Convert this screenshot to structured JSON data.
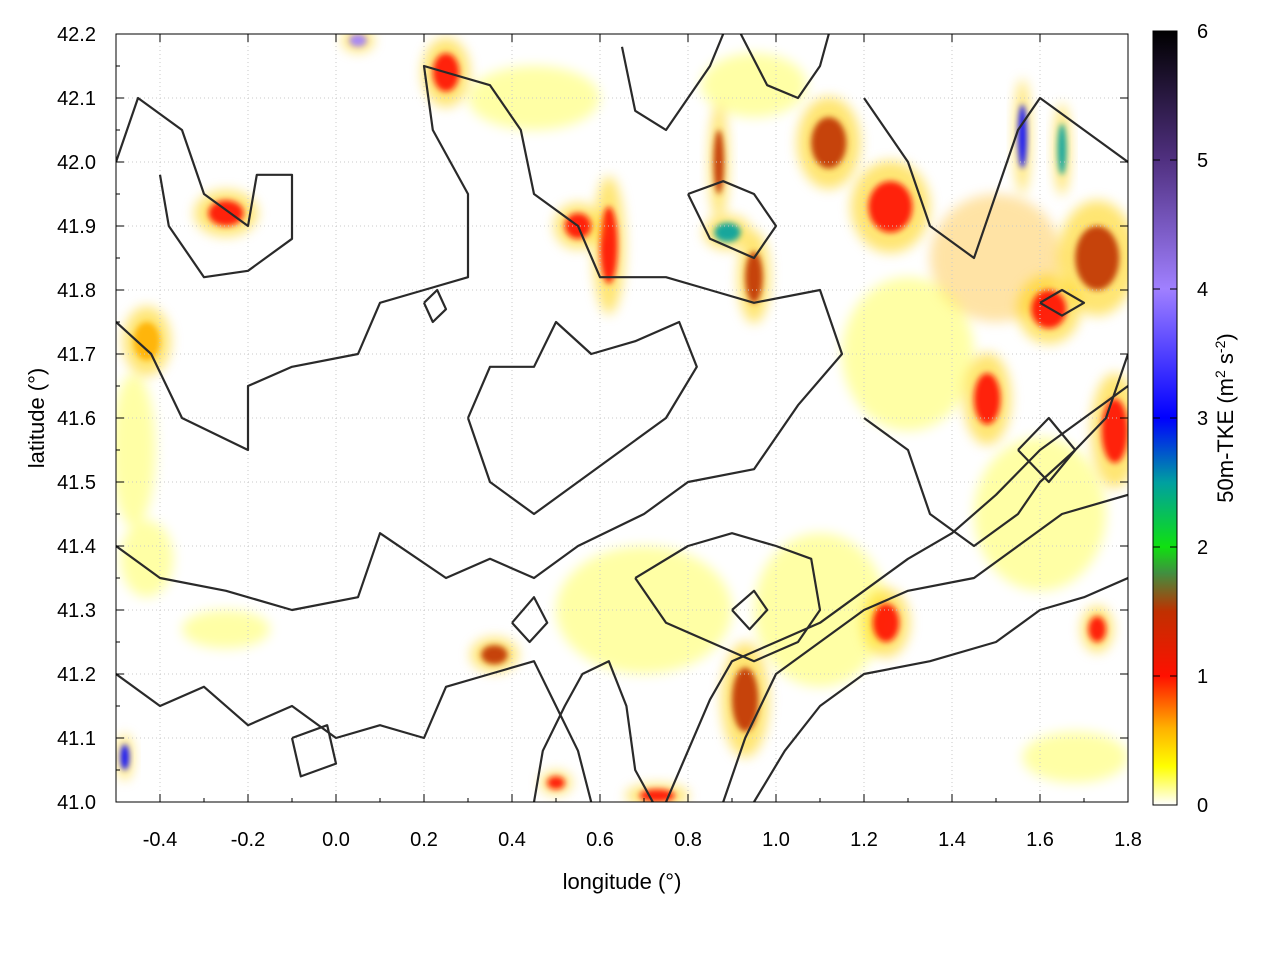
{
  "chart_data": {
    "type": "heatmap",
    "title": "",
    "xlabel": "longitude (°)",
    "ylabel": "latitude (°)",
    "xlim": [
      -0.5,
      1.8
    ],
    "ylim": [
      41.0,
      42.2
    ],
    "x_ticks": [
      -0.4,
      -0.2,
      0.0,
      0.2,
      0.4,
      0.6,
      0.8,
      1.0,
      1.2,
      1.4,
      1.6,
      1.8
    ],
    "x_tick_labels": [
      "-0.4",
      "-0.2",
      "0.0",
      "0.2",
      "0.4",
      "0.6",
      "0.8",
      "1.0",
      "1.2",
      "1.4",
      "1.6",
      "1.8"
    ],
    "y_ticks": [
      41.0,
      41.1,
      41.2,
      41.3,
      41.4,
      41.5,
      41.6,
      41.7,
      41.8,
      41.9,
      42.0,
      42.1,
      42.2
    ],
    "y_tick_labels": [
      "41.0",
      "41.1",
      "41.2",
      "41.3",
      "41.4",
      "41.5",
      "41.6",
      "41.7",
      "41.8",
      "41.9",
      "42.0",
      "42.1",
      "42.2"
    ],
    "grid": true,
    "colorbar": {
      "label_main": "50m-TKE (m",
      "label_sup1": "2",
      "label_mid": " s",
      "label_sup2": "-2",
      "label_end": ")",
      "range": [
        0,
        6
      ],
      "ticks": [
        0,
        1,
        2,
        3,
        4,
        5,
        6
      ],
      "tick_labels": [
        "0",
        "1",
        "2",
        "3",
        "4",
        "5",
        "6"
      ],
      "palette": [
        {
          "value": 0.0,
          "color": "#ffffff"
        },
        {
          "value": 0.3,
          "color": "#ffff00"
        },
        {
          "value": 0.6,
          "color": "#ffb000"
        },
        {
          "value": 1.0,
          "color": "#ff1000"
        },
        {
          "value": 1.5,
          "color": "#c03000"
        },
        {
          "value": 1.8,
          "color": "#409040"
        },
        {
          "value": 2.0,
          "color": "#10e010"
        },
        {
          "value": 2.5,
          "color": "#00a0a0"
        },
        {
          "value": 3.0,
          "color": "#0000ff"
        },
        {
          "value": 4.0,
          "color": "#a080ff"
        },
        {
          "value": 5.0,
          "color": "#503080"
        },
        {
          "value": 6.0,
          "color": "#000000"
        }
      ]
    },
    "hotspots": [
      {
        "lon": 0.36,
        "lat": 41.23,
        "value": 1.3,
        "rx": 0.03,
        "ry": 0.015
      },
      {
        "lon": 0.93,
        "lat": 41.16,
        "value": 1.1,
        "rx": 0.03,
        "ry": 0.05
      },
      {
        "lon": 0.87,
        "lat": 42.0,
        "value": 1.4,
        "rx": 0.012,
        "ry": 0.05
      },
      {
        "lon": 0.89,
        "lat": 41.89,
        "value": 2.3,
        "rx": 0.03,
        "ry": 0.015
      },
      {
        "lon": 0.95,
        "lat": 41.82,
        "value": 1.1,
        "rx": 0.02,
        "ry": 0.04
      },
      {
        "lon": 1.12,
        "lat": 42.03,
        "value": 1.1,
        "rx": 0.04,
        "ry": 0.04
      },
      {
        "lon": 1.56,
        "lat": 42.04,
        "value": 2.7,
        "rx": 0.01,
        "ry": 0.05
      },
      {
        "lon": 1.65,
        "lat": 42.02,
        "value": 2.5,
        "rx": 0.01,
        "ry": 0.04
      },
      {
        "lon": 1.73,
        "lat": 41.85,
        "value": 1.2,
        "rx": 0.05,
        "ry": 0.05
      },
      {
        "lon": 1.62,
        "lat": 41.77,
        "value": 1.0,
        "rx": 0.04,
        "ry": 0.03
      },
      {
        "lon": 1.48,
        "lat": 41.63,
        "value": 1.0,
        "rx": 0.03,
        "ry": 0.04
      },
      {
        "lon": 0.62,
        "lat": 41.87,
        "value": 1.0,
        "rx": 0.02,
        "ry": 0.06
      },
      {
        "lon": 0.25,
        "lat": 42.14,
        "value": 0.9,
        "rx": 0.03,
        "ry": 0.03
      },
      {
        "lon": 1.26,
        "lat": 41.93,
        "value": 0.9,
        "rx": 0.05,
        "ry": 0.04
      },
      {
        "lon": 0.55,
        "lat": 41.9,
        "value": 0.8,
        "rx": 0.03,
        "ry": 0.02
      },
      {
        "lon": -0.25,
        "lat": 41.92,
        "value": 0.7,
        "rx": 0.04,
        "ry": 0.02
      },
      {
        "lon": 0.05,
        "lat": 42.19,
        "value": 3.2,
        "rx": 0.02,
        "ry": 0.01
      },
      {
        "lon": -0.48,
        "lat": 41.07,
        "value": 3.0,
        "rx": 0.01,
        "ry": 0.02
      },
      {
        "lon": 1.77,
        "lat": 41.58,
        "value": 1.0,
        "rx": 0.03,
        "ry": 0.05
      },
      {
        "lon": 0.73,
        "lat": 41.01,
        "value": 1.0,
        "rx": 0.04,
        "ry": 0.01
      },
      {
        "lon": 0.5,
        "lat": 41.03,
        "value": 0.9,
        "rx": 0.02,
        "ry": 0.01
      },
      {
        "lon": 1.25,
        "lat": 41.28,
        "value": 0.9,
        "rx": 0.03,
        "ry": 0.03
      },
      {
        "lon": 1.73,
        "lat": 41.27,
        "value": 0.9,
        "rx": 0.02,
        "ry": 0.02
      },
      {
        "lon": -0.43,
        "lat": 41.72,
        "value": 0.6,
        "rx": 0.03,
        "ry": 0.03
      }
    ],
    "broad_zones": [
      {
        "lon": -0.46,
        "lat": 41.55,
        "value": 0.3,
        "rx": 0.05,
        "ry": 0.12
      },
      {
        "lon": -0.25,
        "lat": 41.27,
        "value": 0.3,
        "rx": 0.1,
        "ry": 0.03
      },
      {
        "lon": -0.43,
        "lat": 41.38,
        "value": 0.3,
        "rx": 0.06,
        "ry": 0.06
      },
      {
        "lon": 1.68,
        "lat": 41.07,
        "value": 0.3,
        "rx": 0.12,
        "ry": 0.04
      },
      {
        "lon": 1.5,
        "lat": 41.85,
        "value": 0.35,
        "rx": 0.15,
        "ry": 0.1
      },
      {
        "lon": 1.3,
        "lat": 41.7,
        "value": 0.3,
        "rx": 0.15,
        "ry": 0.12
      },
      {
        "lon": 1.6,
        "lat": 41.45,
        "value": 0.3,
        "rx": 0.15,
        "ry": 0.12
      },
      {
        "lon": 0.45,
        "lat": 42.1,
        "value": 0.3,
        "rx": 0.15,
        "ry": 0.05
      },
      {
        "lon": 0.95,
        "lat": 42.12,
        "value": 0.3,
        "rx": 0.12,
        "ry": 0.05
      },
      {
        "lon": 0.7,
        "lat": 41.3,
        "value": 0.25,
        "rx": 0.2,
        "ry": 0.1
      },
      {
        "lon": 1.1,
        "lat": 41.3,
        "value": 0.25,
        "rx": 0.15,
        "ry": 0.12
      }
    ],
    "contours": [
      [
        [
          -0.5,
          42.0
        ],
        [
          -0.45,
          42.1
        ],
        [
          -0.35,
          42.05
        ],
        [
          -0.3,
          41.95
        ],
        [
          -0.2,
          41.9
        ],
        [
          -0.18,
          41.98
        ],
        [
          -0.1,
          41.98
        ],
        [
          -0.1,
          41.88
        ],
        [
          -0.2,
          41.83
        ],
        [
          -0.3,
          41.82
        ],
        [
          -0.38,
          41.9
        ],
        [
          -0.4,
          41.98
        ]
      ],
      [
        [
          -0.5,
          41.75
        ],
        [
          -0.42,
          41.7
        ],
        [
          -0.35,
          41.6
        ],
        [
          -0.2,
          41.55
        ],
        [
          -0.2,
          41.65
        ],
        [
          -0.1,
          41.68
        ],
        [
          0.05,
          41.7
        ],
        [
          0.1,
          41.78
        ],
        [
          0.2,
          41.8
        ],
        [
          0.3,
          41.82
        ],
        [
          0.3,
          41.95
        ],
        [
          0.22,
          42.05
        ],
        [
          0.2,
          42.15
        ],
        [
          0.35,
          42.12
        ],
        [
          0.42,
          42.05
        ],
        [
          0.45,
          41.95
        ],
        [
          0.55,
          41.9
        ],
        [
          0.6,
          41.82
        ],
        [
          0.75,
          41.82
        ],
        [
          0.85,
          41.8
        ],
        [
          0.95,
          41.78
        ],
        [
          1.1,
          41.8
        ],
        [
          1.15,
          41.7
        ],
        [
          1.05,
          41.62
        ],
        [
          0.95,
          41.52
        ],
        [
          0.8,
          41.5
        ],
        [
          0.7,
          41.45
        ],
        [
          0.55,
          41.4
        ],
        [
          0.45,
          41.35
        ],
        [
          0.35,
          41.38
        ],
        [
          0.25,
          41.35
        ],
        [
          0.1,
          41.42
        ],
        [
          0.05,
          41.32
        ],
        [
          -0.1,
          41.3
        ],
        [
          -0.25,
          41.33
        ],
        [
          -0.4,
          41.35
        ],
        [
          -0.5,
          41.4
        ]
      ],
      [
        [
          -0.5,
          41.2
        ],
        [
          -0.4,
          41.15
        ],
        [
          -0.3,
          41.18
        ],
        [
          -0.2,
          41.12
        ],
        [
          -0.1,
          41.15
        ],
        [
          0.0,
          41.1
        ],
        [
          0.1,
          41.12
        ],
        [
          0.2,
          41.1
        ],
        [
          0.25,
          41.18
        ],
        [
          0.35,
          41.2
        ],
        [
          0.45,
          41.22
        ],
        [
          0.5,
          41.15
        ],
        [
          0.55,
          41.08
        ],
        [
          0.58,
          41.0
        ]
      ],
      [
        [
          0.45,
          41.0
        ],
        [
          0.47,
          41.08
        ],
        [
          0.52,
          41.15
        ],
        [
          0.56,
          41.2
        ],
        [
          0.62,
          41.22
        ],
        [
          0.66,
          41.15
        ],
        [
          0.68,
          41.05
        ],
        [
          0.72,
          41.0
        ]
      ],
      [
        [
          0.75,
          41.0
        ],
        [
          0.8,
          41.08
        ],
        [
          0.85,
          41.16
        ],
        [
          0.9,
          41.22
        ],
        [
          1.0,
          41.25
        ],
        [
          1.1,
          41.28
        ],
        [
          1.2,
          41.33
        ],
        [
          1.3,
          41.38
        ],
        [
          1.4,
          41.42
        ],
        [
          1.5,
          41.48
        ],
        [
          1.6,
          41.55
        ],
        [
          1.7,
          41.6
        ],
        [
          1.8,
          41.65
        ]
      ],
      [
        [
          0.88,
          41.0
        ],
        [
          0.93,
          41.1
        ],
        [
          1.0,
          41.2
        ],
        [
          1.1,
          41.25
        ],
        [
          1.2,
          41.3
        ],
        [
          1.3,
          41.33
        ],
        [
          1.45,
          41.35
        ],
        [
          1.55,
          41.4
        ],
        [
          1.65,
          41.45
        ],
        [
          1.8,
          41.48
        ]
      ],
      [
        [
          0.95,
          41.0
        ],
        [
          1.02,
          41.08
        ],
        [
          1.1,
          41.15
        ],
        [
          1.2,
          41.2
        ],
        [
          1.35,
          41.22
        ],
        [
          1.5,
          41.25
        ],
        [
          1.6,
          41.3
        ],
        [
          1.7,
          41.32
        ],
        [
          1.8,
          41.35
        ]
      ],
      [
        [
          0.68,
          41.35
        ],
        [
          0.8,
          41.4
        ],
        [
          0.9,
          41.42
        ],
        [
          1.0,
          41.4
        ],
        [
          1.08,
          41.38
        ],
        [
          1.1,
          41.3
        ],
        [
          1.05,
          41.25
        ],
        [
          0.95,
          41.22
        ],
        [
          0.85,
          41.25
        ],
        [
          0.75,
          41.28
        ],
        [
          0.68,
          41.35
        ]
      ],
      [
        [
          0.3,
          41.6
        ],
        [
          0.35,
          41.5
        ],
        [
          0.45,
          41.45
        ],
        [
          0.55,
          41.5
        ],
        [
          0.65,
          41.55
        ],
        [
          0.75,
          41.6
        ],
        [
          0.82,
          41.68
        ],
        [
          0.78,
          41.75
        ],
        [
          0.68,
          41.72
        ],
        [
          0.58,
          41.7
        ],
        [
          0.5,
          41.75
        ],
        [
          0.45,
          41.68
        ],
        [
          0.35,
          41.68
        ],
        [
          0.3,
          41.6
        ]
      ],
      [
        [
          1.2,
          42.1
        ],
        [
          1.3,
          42.0
        ],
        [
          1.35,
          41.9
        ],
        [
          1.45,
          41.85
        ],
        [
          1.5,
          41.95
        ],
        [
          1.55,
          42.05
        ],
        [
          1.6,
          42.1
        ],
        [
          1.7,
          42.05
        ],
        [
          1.8,
          42.0
        ]
      ],
      [
        [
          1.2,
          41.6
        ],
        [
          1.3,
          41.55
        ],
        [
          1.35,
          41.45
        ],
        [
          1.45,
          41.4
        ],
        [
          1.55,
          41.45
        ],
        [
          1.6,
          41.5
        ],
        [
          1.68,
          41.55
        ],
        [
          1.75,
          41.6
        ],
        [
          1.8,
          41.7
        ]
      ],
      [
        [
          0.65,
          42.18
        ],
        [
          0.68,
          42.08
        ],
        [
          0.75,
          42.05
        ],
        [
          0.8,
          42.1
        ],
        [
          0.85,
          42.15
        ],
        [
          0.88,
          42.2
        ]
      ],
      [
        [
          0.92,
          42.2
        ],
        [
          0.98,
          42.12
        ],
        [
          1.05,
          42.1
        ],
        [
          1.1,
          42.15
        ],
        [
          1.12,
          42.2
        ]
      ],
      [
        [
          0.8,
          41.95
        ],
        [
          0.85,
          41.88
        ],
        [
          0.95,
          41.85
        ],
        [
          1.0,
          41.9
        ],
        [
          0.95,
          41.95
        ],
        [
          0.88,
          41.97
        ],
        [
          0.8,
          41.95
        ]
      ],
      [
        [
          -0.1,
          41.1
        ],
        [
          -0.02,
          41.12
        ],
        [
          0.0,
          41.06
        ],
        [
          -0.08,
          41.04
        ],
        [
          -0.1,
          41.1
        ]
      ],
      [
        [
          0.4,
          41.28
        ],
        [
          0.45,
          41.32
        ],
        [
          0.48,
          41.28
        ],
        [
          0.44,
          41.25
        ],
        [
          0.4,
          41.28
        ]
      ],
      [
        [
          0.9,
          41.3
        ],
        [
          0.95,
          41.33
        ],
        [
          0.98,
          41.3
        ],
        [
          0.94,
          41.27
        ],
        [
          0.9,
          41.3
        ]
      ],
      [
        [
          1.55,
          41.55
        ],
        [
          1.62,
          41.6
        ],
        [
          1.68,
          41.55
        ],
        [
          1.62,
          41.5
        ],
        [
          1.55,
          41.55
        ]
      ],
      [
        [
          0.2,
          41.78
        ],
        [
          0.23,
          41.8
        ],
        [
          0.25,
          41.77
        ],
        [
          0.22,
          41.75
        ],
        [
          0.2,
          41.78
        ]
      ],
      [
        [
          1.6,
          41.78
        ],
        [
          1.65,
          41.8
        ],
        [
          1.7,
          41.78
        ],
        [
          1.65,
          41.76
        ],
        [
          1.6,
          41.78
        ]
      ]
    ]
  }
}
